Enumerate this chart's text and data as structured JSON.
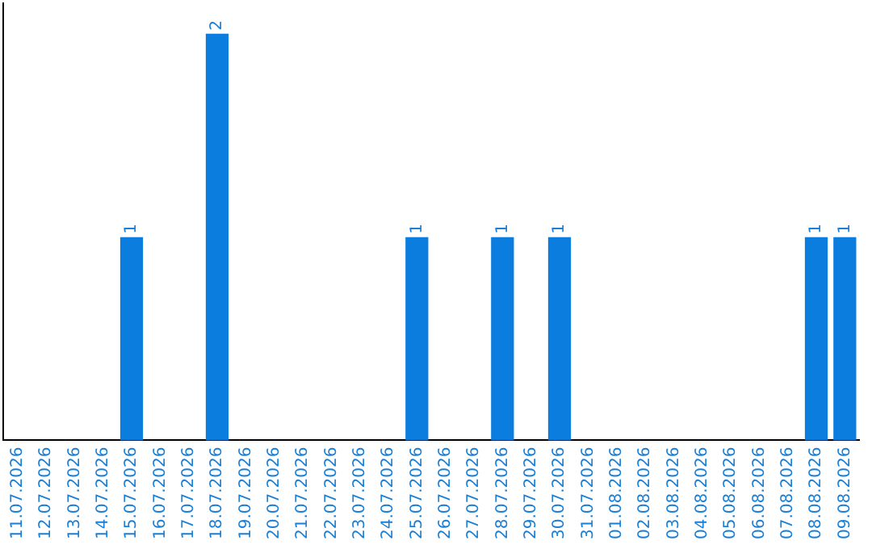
{
  "chart_data": {
    "type": "bar",
    "categories": [
      "11.07.2026",
      "12.07.2026",
      "13.07.2026",
      "14.07.2026",
      "15.07.2026",
      "16.07.2026",
      "17.07.2026",
      "18.07.2026",
      "19.07.2026",
      "20.07.2026",
      "21.07.2026",
      "22.07.2026",
      "23.07.2026",
      "24.07.2026",
      "25.07.2026",
      "26.07.2026",
      "27.07.2026",
      "28.07.2026",
      "29.07.2026",
      "30.07.2026",
      "31.07.2026",
      "01.08.2026",
      "02.08.2026",
      "03.08.2026",
      "04.08.2026",
      "05.08.2026",
      "06.08.2026",
      "07.08.2026",
      "08.08.2026",
      "09.08.2026"
    ],
    "values": [
      0,
      0,
      0,
      0,
      1,
      0,
      0,
      2,
      0,
      0,
      0,
      0,
      0,
      0,
      1,
      0,
      0,
      1,
      0,
      1,
      0,
      0,
      0,
      0,
      0,
      0,
      0,
      0,
      1,
      1
    ],
    "color": "#0a7ddf",
    "ylim": [
      0,
      2.15
    ],
    "value_labels": [
      null,
      null,
      null,
      null,
      "1",
      null,
      null,
      "2",
      null,
      null,
      null,
      null,
      null,
      null,
      "1",
      null,
      null,
      "1",
      null,
      "1",
      null,
      null,
      null,
      null,
      null,
      null,
      null,
      null,
      "1",
      "1"
    ],
    "grid": false,
    "legend": false,
    "tick_labels": "x"
  }
}
